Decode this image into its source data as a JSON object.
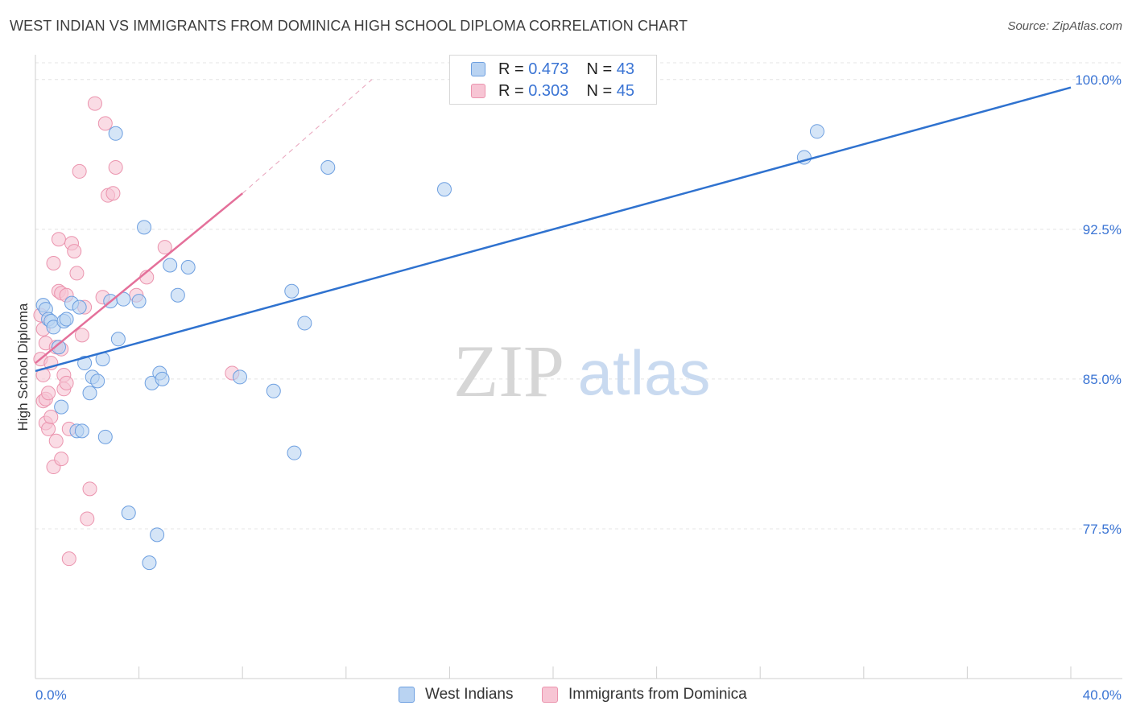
{
  "chart_data": {
    "type": "scatter",
    "title": "WEST INDIAN VS IMMIGRANTS FROM DOMINICA HIGH SCHOOL DIPLOMA CORRELATION CHART",
    "source": "Source: ZipAtlas.com",
    "xlabel": "",
    "ylabel": "High School Diploma",
    "xlim": [
      0,
      40
    ],
    "ylim": [
      70.0,
      101.0
    ],
    "x_tick_labels": [
      "0.0%",
      "40.0%"
    ],
    "y_ticks": [
      77.5,
      85.0,
      92.5,
      100.0
    ],
    "y_tick_labels": [
      "77.5%",
      "85.0%",
      "92.5%",
      "100.0%"
    ],
    "watermark": {
      "zip": "ZIP",
      "atlas": "atlas"
    },
    "legend": [
      {
        "r_label": "R = ",
        "r_value": "0.473",
        "n_label": "N = ",
        "n_value": "43"
      },
      {
        "r_label": "R = ",
        "r_value": "0.303",
        "n_label": "N = ",
        "n_value": "45"
      }
    ],
    "colors": {
      "blue_fill": "#b9d3f2",
      "blue_stroke": "#6d9fe0",
      "blue_line": "#2f72cf",
      "pink_fill": "#f7c5d4",
      "pink_stroke": "#eb94ae",
      "pink_line": "#e4709a",
      "tick_label": "#3a74d4",
      "grid": "#e4e4e4"
    },
    "series": [
      {
        "name": "West Indians",
        "trend": {
          "x0": 0.0,
          "y0": 85.4,
          "x1": 40.0,
          "y1": 99.6
        },
        "points": [
          [
            0.3,
            88.7
          ],
          [
            0.4,
            88.5
          ],
          [
            0.5,
            88.0
          ],
          [
            0.6,
            87.9
          ],
          [
            0.7,
            87.6
          ],
          [
            0.9,
            86.6
          ],
          [
            1.0,
            83.6
          ],
          [
            1.1,
            87.9
          ],
          [
            1.4,
            88.8
          ],
          [
            1.6,
            82.4
          ],
          [
            1.7,
            88.6
          ],
          [
            1.8,
            82.4
          ],
          [
            1.9,
            85.8
          ],
          [
            2.1,
            84.3
          ],
          [
            2.2,
            85.1
          ],
          [
            2.4,
            84.9
          ],
          [
            2.6,
            86.0
          ],
          [
            2.7,
            82.1
          ],
          [
            2.9,
            88.9
          ],
          [
            3.1,
            97.3
          ],
          [
            3.2,
            87.0
          ],
          [
            3.4,
            89.0
          ],
          [
            3.6,
            78.3
          ],
          [
            4.0,
            88.9
          ],
          [
            4.2,
            92.6
          ],
          [
            4.5,
            84.8
          ],
          [
            4.7,
            77.2
          ],
          [
            4.8,
            85.3
          ],
          [
            4.9,
            85.0
          ],
          [
            5.2,
            90.7
          ],
          [
            5.5,
            89.2
          ],
          [
            5.9,
            90.6
          ],
          [
            7.9,
            85.1
          ],
          [
            9.2,
            84.4
          ],
          [
            9.9,
            89.4
          ],
          [
            10.0,
            81.3
          ],
          [
            10.4,
            87.8
          ],
          [
            11.3,
            95.6
          ],
          [
            15.8,
            94.5
          ],
          [
            29.7,
            96.1
          ],
          [
            30.2,
            97.4
          ],
          [
            4.4,
            75.8
          ],
          [
            1.2,
            88.0
          ]
        ]
      },
      {
        "name": "Immigrants from Dominica",
        "trend": {
          "x0": 0.0,
          "y0": 85.8,
          "x1": 8.0,
          "y1": 94.3,
          "dash_x1": 13.0,
          "dash_y1": 100.0
        },
        "points": [
          [
            0.2,
            88.2
          ],
          [
            0.2,
            86.0
          ],
          [
            0.3,
            83.9
          ],
          [
            0.3,
            85.2
          ],
          [
            0.4,
            86.8
          ],
          [
            0.4,
            84.0
          ],
          [
            0.4,
            82.8
          ],
          [
            0.5,
            84.3
          ],
          [
            0.5,
            82.5
          ],
          [
            0.6,
            85.8
          ],
          [
            0.6,
            83.1
          ],
          [
            0.7,
            90.8
          ],
          [
            0.7,
            80.6
          ],
          [
            0.8,
            86.6
          ],
          [
            0.8,
            81.9
          ],
          [
            0.9,
            92.0
          ],
          [
            0.9,
            89.4
          ],
          [
            1.0,
            86.5
          ],
          [
            1.0,
            89.3
          ],
          [
            1.0,
            81.0
          ],
          [
            1.1,
            85.2
          ],
          [
            1.1,
            84.5
          ],
          [
            1.2,
            89.2
          ],
          [
            1.2,
            84.8
          ],
          [
            1.3,
            82.5
          ],
          [
            1.3,
            76.0
          ],
          [
            1.4,
            91.8
          ],
          [
            1.5,
            91.4
          ],
          [
            1.6,
            90.3
          ],
          [
            1.7,
            95.4
          ],
          [
            1.8,
            87.2
          ],
          [
            1.9,
            88.6
          ],
          [
            2.0,
            78.0
          ],
          [
            2.1,
            79.5
          ],
          [
            2.3,
            98.8
          ],
          [
            2.6,
            89.1
          ],
          [
            2.7,
            97.8
          ],
          [
            2.8,
            94.2
          ],
          [
            3.0,
            94.3
          ],
          [
            3.1,
            95.6
          ],
          [
            3.9,
            89.2
          ],
          [
            4.3,
            90.1
          ],
          [
            5.0,
            91.6
          ],
          [
            7.6,
            85.3
          ],
          [
            0.3,
            87.5
          ]
        ]
      }
    ],
    "bottom_legend": [
      "West Indians",
      "Immigrants from Dominica"
    ]
  }
}
